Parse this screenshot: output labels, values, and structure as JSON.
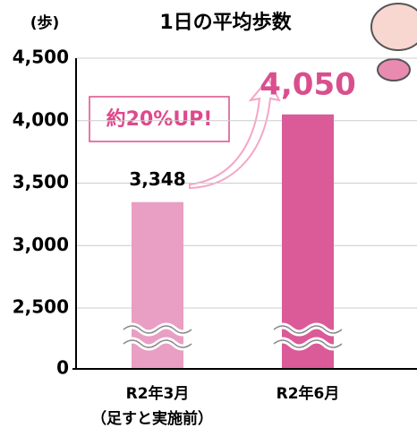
{
  "chart_data": {
    "type": "bar",
    "title": "1日の平均歩数",
    "y_label": "(歩)",
    "categories": [
      "R2年3月",
      "R2年6月"
    ],
    "values": [
      3348,
      4050
    ],
    "value_labels": [
      "3,348",
      "4,050"
    ],
    "colors": [
      "#e99ec3",
      "#da5b97"
    ],
    "ylim": [
      0,
      4500
    ],
    "yticks": [
      {
        "value": 0,
        "label": "0"
      },
      {
        "value": 2500,
        "label": "2,500"
      },
      {
        "value": 3000,
        "label": "3,000"
      },
      {
        "value": 3500,
        "label": "3,500"
      },
      {
        "value": 4000,
        "label": "4,000"
      },
      {
        "value": 4500,
        "label": "4,500"
      }
    ],
    "axis_break": true,
    "grid": true,
    "annotations": [
      "約20%UP!",
      "（足すと実施前）"
    ]
  }
}
